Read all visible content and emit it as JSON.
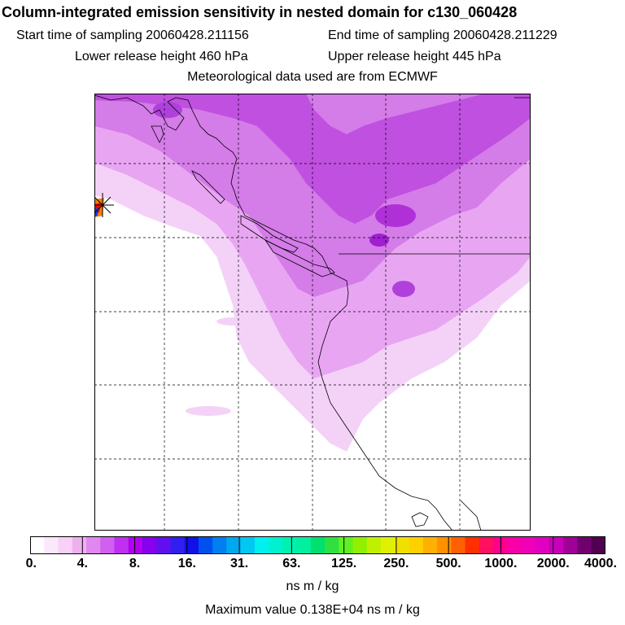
{
  "header": {
    "title": "Column-integrated emission sensitivity in nested domain for c130_060428",
    "start_time": "Start time of sampling 20060428.211156",
    "end_time": "End time of sampling 20060428.211229",
    "lower_release": "Lower release height  460 hPa",
    "upper_release": "Upper release height  445 hPa",
    "met_data": "Meteorological data used are from ECMWF"
  },
  "legend": {
    "tick_labels": [
      "0.",
      "4.",
      "8.",
      "16.",
      "31.",
      "63.",
      "125.",
      "250.",
      "500.",
      "1000.",
      "2000.",
      "4000."
    ],
    "colors": [
      "#ffffff",
      "#fce8fc",
      "#f8d0f8",
      "#f0b0f0",
      "#e088f0",
      "#d060f0",
      "#c030f0",
      "#b000f0",
      "#8800ee",
      "#6010ee",
      "#3020f0",
      "#1010e8",
      "#0050f0",
      "#0080f0",
      "#00a8f0",
      "#00c8f0",
      "#00f0f0",
      "#00f0d0",
      "#00f0b0",
      "#00f0a0",
      "#00e070",
      "#30e040",
      "#60f020",
      "#90f000",
      "#c0f000",
      "#e0f000",
      "#f0e000",
      "#ffd000",
      "#ffb000",
      "#ff9000",
      "#ff6000",
      "#ff3000",
      "#ff1060",
      "#ff0090",
      "#f800a8",
      "#f000b8",
      "#e000c0",
      "#c800b8",
      "#a00098",
      "#700070",
      "#500050"
    ],
    "units": "ns m / kg",
    "max_value": "Maximum value  0.138E+04 ns m / kg"
  }
}
